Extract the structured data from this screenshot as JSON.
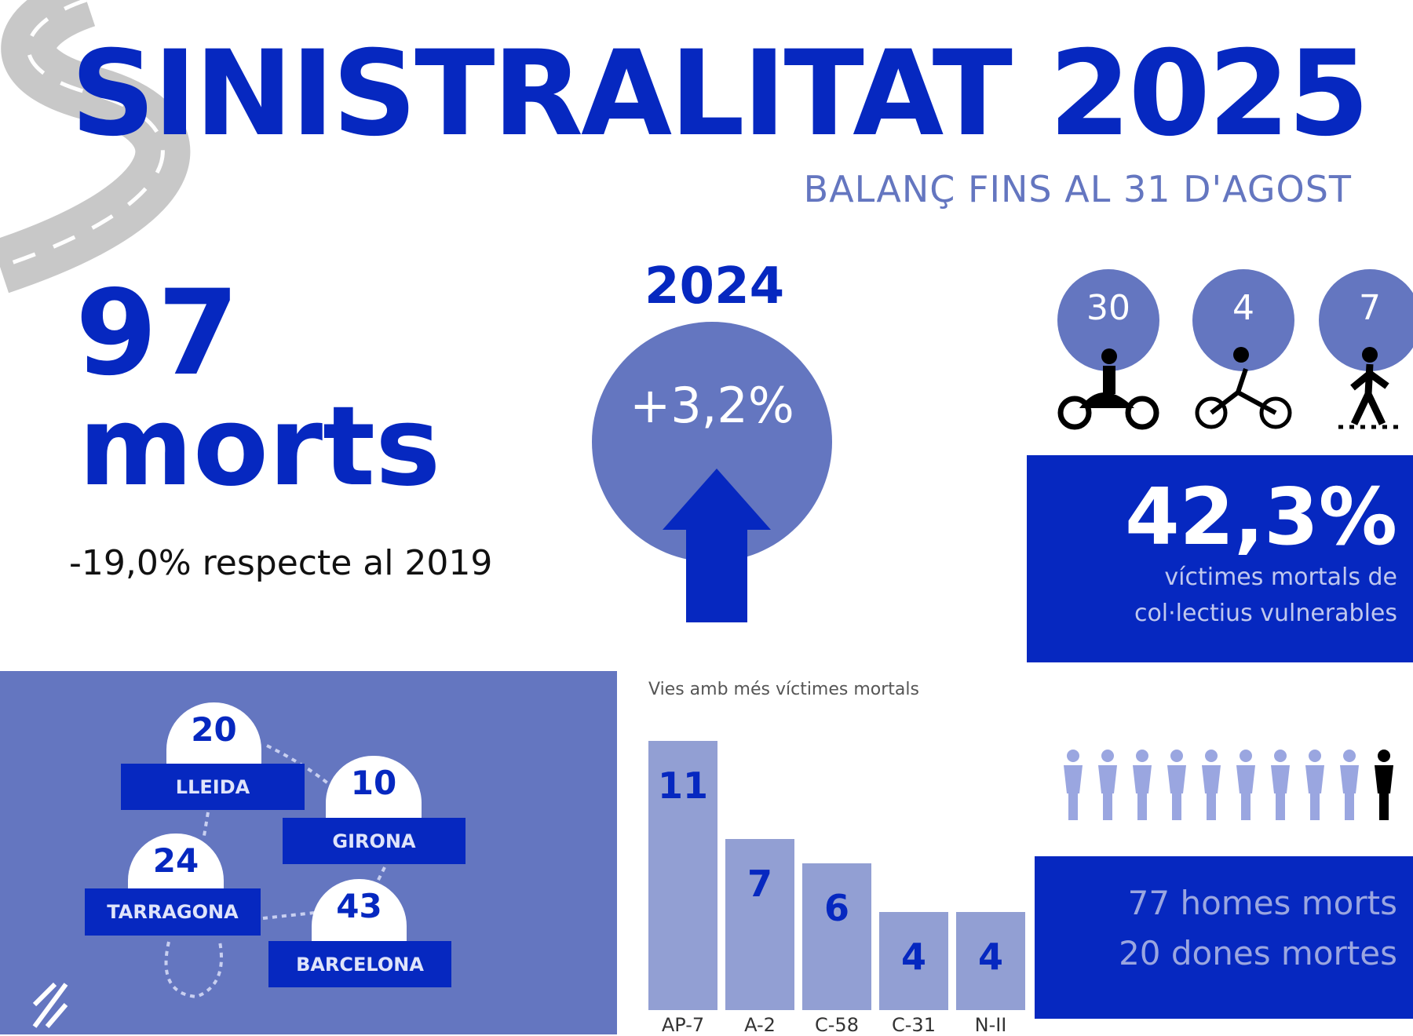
{
  "header": {
    "title": "SINISTRALITAT 2025",
    "subtitle": "BALANÇ FINS AL 31 D'AGOST"
  },
  "total": {
    "value": "97",
    "unit": "morts",
    "comparison": "-19,0% respecte al 2019"
  },
  "vs_2024": {
    "year": "2024",
    "change": "+3,2%",
    "direction": "up"
  },
  "vulnerable": {
    "items": [
      {
        "icon": "motorcycle-icon",
        "value": "30"
      },
      {
        "icon": "bicycle-icon",
        "value": "4"
      },
      {
        "icon": "pedestrian-icon",
        "value": "7"
      }
    ],
    "percent": "42,3%",
    "line1": "víctimes mortals de",
    "line2": "col·lectius vulnerables"
  },
  "regions": [
    {
      "name": "LLEIDA",
      "value": "20"
    },
    {
      "name": "GIRONA",
      "value": "10"
    },
    {
      "name": "TARRAGONA",
      "value": "24"
    },
    {
      "name": "BARCELONA",
      "value": "43"
    }
  ],
  "chart_data": {
    "type": "bar",
    "title": "Vies amb més víctimes mortals",
    "categories": [
      "AP-7",
      "A-2",
      "C-58",
      "C-31",
      "N-II"
    ],
    "values": [
      11,
      7,
      6,
      4,
      4
    ]
  },
  "gender": {
    "men": "77 homes morts",
    "women": "20 dones mortes"
  },
  "colors": {
    "primary": "#0628c0",
    "secondary": "#6476c0",
    "bar": "#929fd3"
  }
}
